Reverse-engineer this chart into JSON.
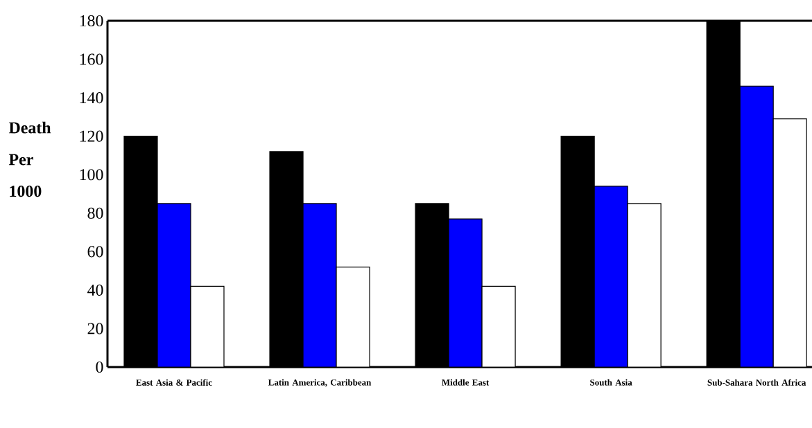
{
  "chart_data": {
    "type": "bar",
    "ylabel": "Death Per 1000",
    "categories": [
      "East Asia & Pacific",
      "Latin America, Caribbean",
      "Middle East",
      "South Asia",
      "Sub-Sahara North Africa"
    ],
    "series": [
      {
        "color": "#000000",
        "values": [
          120,
          112,
          85,
          120,
          180
        ]
      },
      {
        "color": "#0000ff",
        "values": [
          85,
          85,
          77,
          94,
          146
        ]
      },
      {
        "color": "#ffffff",
        "values": [
          42,
          52,
          42,
          85,
          129
        ]
      }
    ],
    "ylim": [
      0,
      180
    ],
    "yticks": [
      0,
      20,
      40,
      60,
      80,
      100,
      120,
      140,
      160,
      180
    ]
  }
}
